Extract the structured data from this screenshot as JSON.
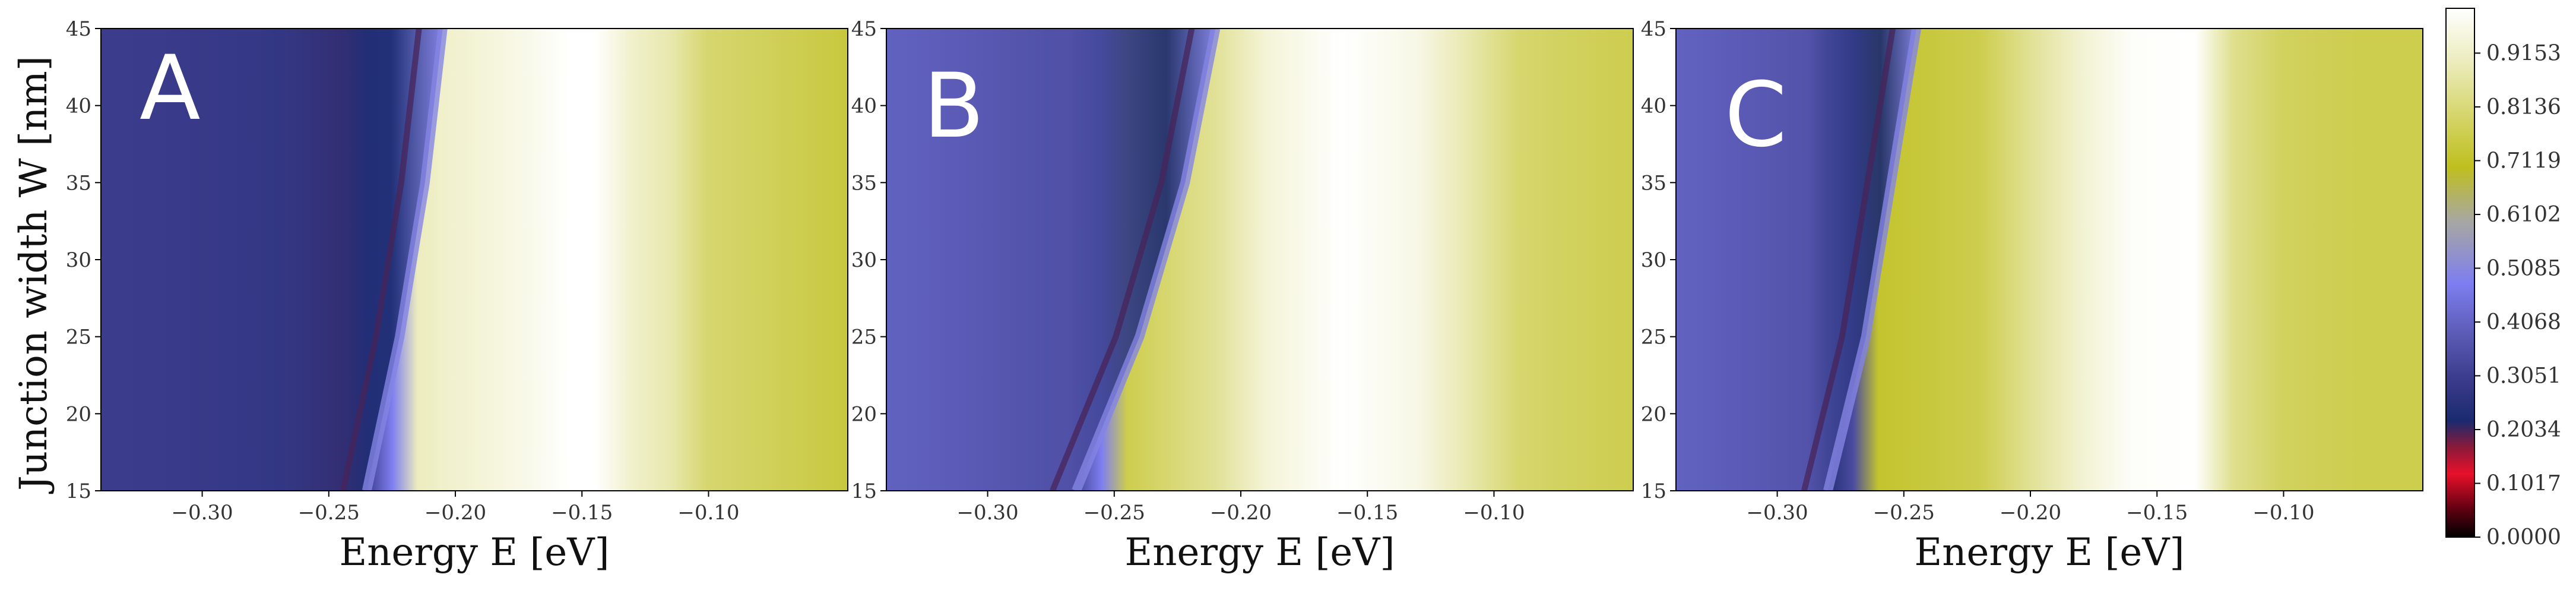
{
  "chart_data": [
    {
      "type": "heatmap",
      "panel_label": "A",
      "xlabel": "Energy E [eV]",
      "ylabel": "Junction width W [nm]",
      "xlim": [
        -0.34,
        -0.045
      ],
      "ylim": [
        15,
        45
      ],
      "xticks": [
        "−0.30",
        "−0.25",
        "−0.20",
        "−0.15",
        "−0.10"
      ],
      "xtick_values": [
        -0.3,
        -0.25,
        -0.2,
        -0.15,
        -0.1
      ],
      "yticks": [
        "15",
        "20",
        "25",
        "30",
        "35",
        "40",
        "45"
      ],
      "ytick_values": [
        15,
        20,
        25,
        30,
        35,
        40,
        45
      ],
      "transition_edge": {
        "W": [
          15,
          25,
          35,
          45
        ],
        "E": [
          -0.235,
          -0.222,
          -0.212,
          -0.205
        ]
      },
      "color_profile_by_energy": {
        "E": [
          -0.34,
          -0.3,
          -0.27,
          -0.255,
          -0.245,
          -0.235,
          -0.225,
          -0.215,
          -0.205,
          -0.19,
          -0.17,
          -0.155,
          -0.145,
          -0.13,
          -0.115,
          -0.1,
          -0.08,
          -0.045
        ],
        "value": [
          0.3,
          0.3,
          0.22,
          0.18,
          0.14,
          0.3,
          0.48,
          0.9,
          0.92,
          0.94,
          0.97,
          1.0,
          1.0,
          0.92,
          0.88,
          0.8,
          0.78,
          0.74
        ]
      }
    },
    {
      "type": "heatmap",
      "panel_label": "B",
      "xlabel": "Energy E [eV]",
      "ylabel": "",
      "xlim": [
        -0.34,
        -0.045
      ],
      "ylim": [
        15,
        45
      ],
      "xticks": [
        "−0.30",
        "−0.25",
        "−0.20",
        "−0.15",
        "−0.10"
      ],
      "xtick_values": [
        -0.3,
        -0.25,
        -0.2,
        -0.15,
        -0.1
      ],
      "yticks": [
        "15",
        "20",
        "25",
        "30",
        "35",
        "40",
        "45"
      ],
      "ytick_values": [
        15,
        20,
        25,
        30,
        35,
        40,
        45
      ],
      "transition_edge": {
        "W": [
          15,
          25,
          35,
          45
        ],
        "E": [
          -0.265,
          -0.24,
          -0.222,
          -0.21
        ]
      },
      "color_profile_by_energy": {
        "E": [
          -0.34,
          -0.31,
          -0.29,
          -0.275,
          -0.265,
          -0.255,
          -0.245,
          -0.23,
          -0.21,
          -0.19,
          -0.16,
          -0.13,
          -0.11,
          -0.09,
          -0.07,
          -0.045
        ],
        "value": [
          0.4,
          0.38,
          0.3,
          0.22,
          0.32,
          0.48,
          0.76,
          0.8,
          0.85,
          0.94,
          1.0,
          0.96,
          0.88,
          0.8,
          0.78,
          0.76
        ]
      }
    },
    {
      "type": "heatmap",
      "panel_label": "C",
      "xlabel": "Energy E [eV]",
      "ylabel": "",
      "xlim": [
        -0.34,
        -0.045
      ],
      "ylim": [
        15,
        45
      ],
      "xticks": [
        "−0.30",
        "−0.25",
        "−0.20",
        "−0.15",
        "−0.10"
      ],
      "xtick_values": [
        -0.3,
        -0.25,
        -0.2,
        -0.15,
        -0.1
      ],
      "yticks": [
        "15",
        "20",
        "25",
        "30",
        "35",
        "40",
        "45"
      ],
      "ytick_values": [
        15,
        20,
        25,
        30,
        35,
        40,
        45
      ],
      "transition_edge": {
        "W": [
          15,
          25,
          35,
          45
        ],
        "E": [
          -0.28,
          -0.265,
          -0.255,
          -0.245
        ]
      },
      "color_profile_by_energy": {
        "E": [
          -0.34,
          -0.31,
          -0.29,
          -0.28,
          -0.27,
          -0.26,
          -0.24,
          -0.22,
          -0.2,
          -0.18,
          -0.16,
          -0.135,
          -0.12,
          -0.1,
          -0.07,
          -0.045
        ],
        "value": [
          0.42,
          0.4,
          0.36,
          0.24,
          0.34,
          0.72,
          0.74,
          0.76,
          0.85,
          0.93,
          0.99,
          1.0,
          0.84,
          0.78,
          0.76,
          0.76
        ]
      }
    }
  ],
  "colorbar": {
    "ticks": [
      "0.0000",
      "0.1017",
      "0.2034",
      "0.3051",
      "0.4068",
      "0.5085",
      "0.6102",
      "0.7119",
      "0.8136",
      "0.9153"
    ],
    "tick_values": [
      0.0,
      0.1017,
      0.2034,
      0.3051,
      0.4068,
      0.5085,
      0.6102,
      0.7119,
      0.8136,
      0.9153
    ],
    "range": [
      0.0,
      1.0
    ],
    "colormap_stops": [
      {
        "v": 0.0,
        "color": "#000000"
      },
      {
        "v": 0.05,
        "color": "#5a0010"
      },
      {
        "v": 0.12,
        "color": "#e8102a"
      },
      {
        "v": 0.17,
        "color": "#8a1a3a"
      },
      {
        "v": 0.22,
        "color": "#1a2a6e"
      },
      {
        "v": 0.3,
        "color": "#3c3c8c"
      },
      {
        "v": 0.38,
        "color": "#5a5ab4"
      },
      {
        "v": 0.48,
        "color": "#7e7ef0"
      },
      {
        "v": 0.6,
        "color": "#a8a8a0"
      },
      {
        "v": 0.7,
        "color": "#bfbf1e"
      },
      {
        "v": 0.8,
        "color": "#d6d66e"
      },
      {
        "v": 0.9,
        "color": "#ececbe"
      },
      {
        "v": 1.0,
        "color": "#ffffff"
      }
    ]
  }
}
